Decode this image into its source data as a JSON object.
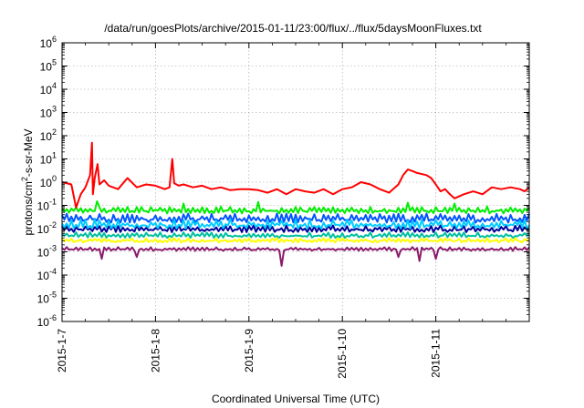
{
  "chart_data": {
    "type": "line",
    "title": "/data/run/goesPlots/archive/2015-01-11/23:00/flux/../flux/5daysMoonFluxes.txt",
    "xlabel": "Coordinated Universal Time (UTC)",
    "ylabel": "protons/cm²-s-sr-MeV",
    "ylabel_base": "protons/cm",
    "ylabel_sup": "2",
    "ylabel_rest": "-s-sr-MeV",
    "yscale": "log",
    "ylim_exp": [
      -6,
      6
    ],
    "xlim_days": [
      0,
      5
    ],
    "grid": true,
    "x_ticks": [
      {
        "label": "2015-1-7",
        "day": 0
      },
      {
        "label": "2015-1-8",
        "day": 1
      },
      {
        "label": "2015-1-9",
        "day": 2
      },
      {
        "label": "2015-1-10",
        "day": 3
      },
      {
        "label": "2015-1-11",
        "day": 4
      }
    ],
    "y_ticks": [
      {
        "base": "10",
        "exp": "-6"
      },
      {
        "base": "10",
        "exp": "-5"
      },
      {
        "base": "10",
        "exp": "-4"
      },
      {
        "base": "10",
        "exp": "-3"
      },
      {
        "base": "10",
        "exp": "-2"
      },
      {
        "base": "10",
        "exp": "-1"
      },
      {
        "base": "10",
        "exp": "0"
      },
      {
        "base": "10",
        "exp": "1"
      },
      {
        "base": "10",
        "exp": "2"
      },
      {
        "base": "10",
        "exp": "3"
      },
      {
        "base": "10",
        "exp": "4"
      },
      {
        "base": "10",
        "exp": "5"
      },
      {
        "base": "10",
        "exp": "6"
      }
    ],
    "series": [
      {
        "color": "#ff0000",
        "x": [
          0,
          0.1,
          0.15,
          0.2,
          0.25,
          0.3,
          0.32,
          0.33,
          0.35,
          0.38,
          0.4,
          0.45,
          0.5,
          0.6,
          0.7,
          0.8,
          0.9,
          1.0,
          1.1,
          1.15,
          1.18,
          1.2,
          1.25,
          1.3,
          1.4,
          1.5,
          1.6,
          1.7,
          1.8,
          1.9,
          2.0,
          2.1,
          2.2,
          2.3,
          2.4,
          2.5,
          2.6,
          2.7,
          2.8,
          2.9,
          3.0,
          3.1,
          3.2,
          3.3,
          3.4,
          3.5,
          3.6,
          3.65,
          3.7,
          3.75,
          3.8,
          3.9,
          3.95,
          4.0,
          4.05,
          4.1,
          4.15,
          4.2,
          4.3,
          4.4,
          4.5,
          4.6,
          4.7,
          4.8,
          4.9,
          4.95,
          5.0
        ],
        "y": [
          1.0,
          0.8,
          0.08,
          0.3,
          0.6,
          2.0,
          50,
          0.3,
          1.5,
          6,
          0.8,
          1.2,
          0.7,
          0.5,
          1.5,
          0.6,
          0.8,
          0.7,
          0.5,
          0.6,
          10,
          0.9,
          0.7,
          0.8,
          0.6,
          0.7,
          0.5,
          0.6,
          0.45,
          0.5,
          0.5,
          0.45,
          0.35,
          0.5,
          0.3,
          0.5,
          0.4,
          0.35,
          0.5,
          0.3,
          0.5,
          0.6,
          1.0,
          0.8,
          0.5,
          0.35,
          0.8,
          2.0,
          3.5,
          3.0,
          2.5,
          2.0,
          1.5,
          0.8,
          0.4,
          0.5,
          0.3,
          0.2,
          0.3,
          0.4,
          0.3,
          0.6,
          0.5,
          0.6,
          0.5,
          0.4,
          0.6
        ]
      },
      {
        "color": "#00ee00",
        "band": [
          0.045,
          0.09
        ],
        "spikes": [
          {
            "day": 0.38,
            "value": 0.15
          },
          {
            "day": 1.3,
            "value": 0.12
          },
          {
            "day": 2.1,
            "value": 0.14
          },
          {
            "day": 3.7,
            "value": 0.13
          },
          {
            "day": 4.2,
            "value": 0.12
          }
        ]
      },
      {
        "color": "#00ccff",
        "band": [
          0.01,
          0.025
        ]
      },
      {
        "color": "#0055ff",
        "band": [
          0.018,
          0.045
        ]
      },
      {
        "color": "#000099",
        "band": [
          0.007,
          0.014
        ]
      },
      {
        "color": "#00c0a0",
        "band": [
          0.004,
          0.007
        ]
      },
      {
        "color": "#ffff00",
        "band": [
          0.0025,
          0.004
        ]
      },
      {
        "color": "#8b1a6b",
        "band": [
          0.0011,
          0.0016
        ],
        "dips": [
          {
            "day": 0.43,
            "value": 0.0005
          },
          {
            "day": 0.79,
            "value": 0.0006
          },
          {
            "day": 2.35,
            "value": 0.00025
          },
          {
            "day": 3.6,
            "value": 0.0006
          },
          {
            "day": 3.82,
            "value": 0.0004
          },
          {
            "day": 4.0,
            "value": 0.0005
          }
        ]
      }
    ]
  }
}
